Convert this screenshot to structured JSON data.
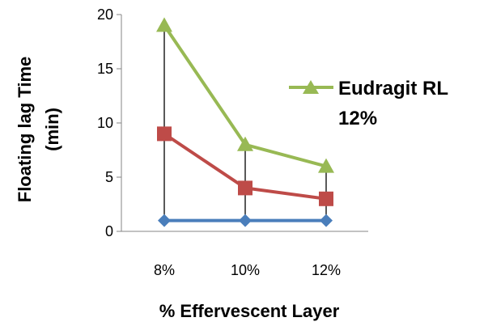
{
  "chart_data": {
    "type": "line",
    "categories": [
      "8%",
      "10%",
      "12%"
    ],
    "series": [
      {
        "name": "",
        "color": "#4a7ebb",
        "marker": "diamond",
        "values": [
          1,
          1,
          1
        ]
      },
      {
        "name": "",
        "color": "#be4b48",
        "marker": "square",
        "values": [
          9,
          4,
          3
        ]
      },
      {
        "name": "Eudragit RL 12%",
        "color": "#98b954",
        "marker": "triangle",
        "values": [
          19,
          8,
          6
        ]
      }
    ],
    "title": "",
    "xlabel": "% Effervescent Layer",
    "ylabel_lines": [
      "Floating lag Time",
      "(min)"
    ],
    "ylim": [
      0,
      20
    ],
    "yticks": [
      "0",
      "5",
      "10",
      "15",
      "20"
    ],
    "legend": {
      "lines": [
        "Eudragit RL",
        "12%"
      ],
      "placement": "right"
    },
    "grid": false,
    "drop_lines": true
  }
}
